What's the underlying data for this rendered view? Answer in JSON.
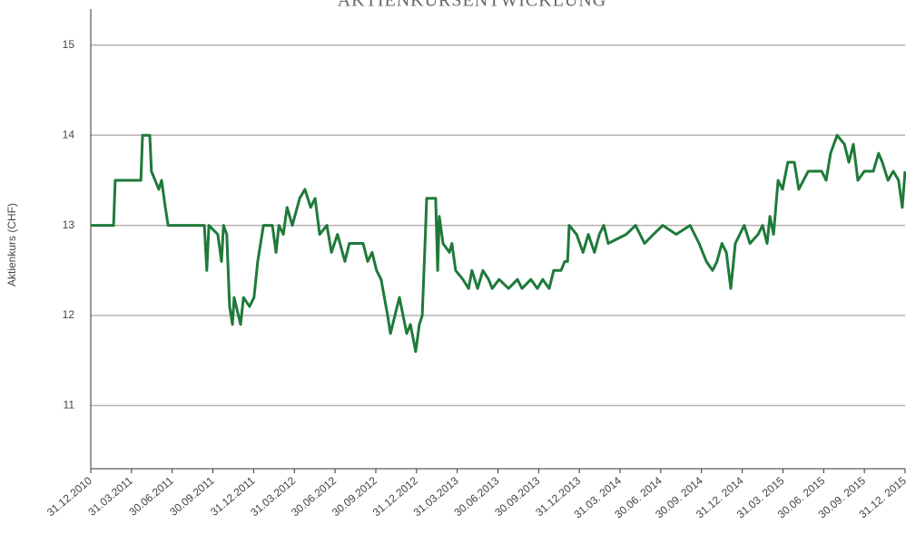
{
  "chart_data": {
    "type": "line",
    "title": "AKTIENKURSENTWICKLUNG",
    "y_label": "Aktienkurs (CHF)",
    "x": [
      0,
      0.56,
      0.6,
      1.23,
      1.27,
      1.45,
      1.49,
      1.67,
      1.74,
      1.83,
      1.9,
      2.79,
      2.85,
      2.9,
      3.12,
      3.21,
      3.26,
      3.34,
      3.41,
      3.48,
      3.52,
      3.68,
      3.75,
      3.9,
      4.01,
      4.1,
      4.24,
      4.46,
      4.55,
      4.62,
      4.73,
      4.82,
      4.95,
      5.13,
      5.26,
      5.4,
      5.51,
      5.62,
      5.8,
      5.91,
      6.06,
      6.24,
      6.35,
      6.69,
      6.8,
      6.91,
      7.02,
      7.13,
      7.29,
      7.36,
      7.47,
      7.58,
      7.67,
      7.76,
      7.85,
      7.98,
      8.07,
      8.14,
      8.21,
      8.25,
      8.47,
      8.52,
      8.56,
      8.65,
      8.81,
      8.87,
      8.96,
      9.14,
      9.28,
      9.36,
      9.5,
      9.63,
      9.77,
      9.86,
      10.03,
      10.26,
      10.48,
      10.59,
      10.81,
      10.97,
      11.1,
      11.26,
      11.37,
      11.55,
      11.64,
      11.71,
      11.75,
      11.93,
      12.09,
      12.22,
      12.37,
      12.49,
      12.6,
      12.71,
      13.15,
      13.38,
      13.6,
      13.82,
      14.05,
      14.38,
      14.72,
      14.83,
      14.94,
      15.12,
      15.27,
      15.38,
      15.5,
      15.61,
      15.72,
      15.83,
      16.05,
      16.19,
      16.39,
      16.5,
      16.61,
      16.68,
      16.77,
      16.88,
      16.99,
      17.12,
      17.28,
      17.39,
      17.62,
      17.95,
      18.06,
      18.17,
      18.33,
      18.51,
      18.62,
      18.73,
      18.84,
      19.0,
      19.22,
      19.35,
      19.44,
      19.58,
      19.71,
      19.84,
      19.93,
      20.0
    ],
    "series": [
      {
        "color": "#1f7a3a",
        "values": [
          13.0,
          13.0,
          13.5,
          13.5,
          14.0,
          14.0,
          13.6,
          13.4,
          13.5,
          13.2,
          13.0,
          13.0,
          12.5,
          13.0,
          12.9,
          12.6,
          13.0,
          12.9,
          12.1,
          11.9,
          12.2,
          11.9,
          12.2,
          12.1,
          12.2,
          12.6,
          13.0,
          13.0,
          12.7,
          13.0,
          12.9,
          13.2,
          13.0,
          13.3,
          13.4,
          13.2,
          13.3,
          12.9,
          13.0,
          12.7,
          12.9,
          12.6,
          12.8,
          12.8,
          12.6,
          12.7,
          12.5,
          12.4,
          12.0,
          11.8,
          12.0,
          12.2,
          12.0,
          11.8,
          11.9,
          11.6,
          11.9,
          12.0,
          12.8,
          13.3,
          13.3,
          12.5,
          13.1,
          12.8,
          12.7,
          12.8,
          12.5,
          12.4,
          12.3,
          12.5,
          12.3,
          12.5,
          12.4,
          12.3,
          12.4,
          12.3,
          12.4,
          12.3,
          12.4,
          12.3,
          12.4,
          12.3,
          12.5,
          12.5,
          12.6,
          12.6,
          13.0,
          12.9,
          12.7,
          12.9,
          12.7,
          12.9,
          13.0,
          12.8,
          12.9,
          13.0,
          12.8,
          12.9,
          13.0,
          12.9,
          13.0,
          12.9,
          12.8,
          12.6,
          12.5,
          12.6,
          12.8,
          12.7,
          12.3,
          12.8,
          13.0,
          12.8,
          12.9,
          13.0,
          12.8,
          13.1,
          12.9,
          13.5,
          13.4,
          13.7,
          13.7,
          13.4,
          13.6,
          13.6,
          13.5,
          13.8,
          14.0,
          13.9,
          13.7,
          13.9,
          13.5,
          13.6,
          13.6,
          13.8,
          13.7,
          13.5,
          13.6,
          13.5,
          13.2,
          13.6
        ]
      }
    ],
    "xlim": [
      0,
      20
    ],
    "xticks": [
      {
        "value": 0,
        "label": "31.12.2010"
      },
      {
        "value": 1,
        "label": "31.03.2011"
      },
      {
        "value": 2,
        "label": "30.06.2011"
      },
      {
        "value": 3,
        "label": "30.09.2011"
      },
      {
        "value": 4,
        "label": "31.12.2011"
      },
      {
        "value": 5,
        "label": "31.03.2012"
      },
      {
        "value": 6,
        "label": "30.06.2012"
      },
      {
        "value": 7,
        "label": "30.09.2012"
      },
      {
        "value": 8,
        "label": "31.12.2012"
      },
      {
        "value": 9,
        "label": "31.03.2013"
      },
      {
        "value": 10,
        "label": "30.06.2013"
      },
      {
        "value": 11,
        "label": "30.09.2013"
      },
      {
        "value": 12,
        "label": "31.12.2013"
      },
      {
        "value": 13,
        "label": "31.03. 2014"
      },
      {
        "value": 14,
        "label": "30.06. 2014"
      },
      {
        "value": 15,
        "label": "30.09. 2014"
      },
      {
        "value": 16,
        "label": "31.12. 2014"
      },
      {
        "value": 17,
        "label": "31.03. 2015"
      },
      {
        "value": 18,
        "label": "30.06. 2015"
      },
      {
        "value": 19,
        "label": "30.09. 2015"
      },
      {
        "value": 20,
        "label": "31.12. 2015"
      }
    ],
    "ylim": [
      10.3,
      15.4
    ],
    "yticks": [
      11,
      12,
      13,
      14,
      15
    ],
    "grid": true
  }
}
